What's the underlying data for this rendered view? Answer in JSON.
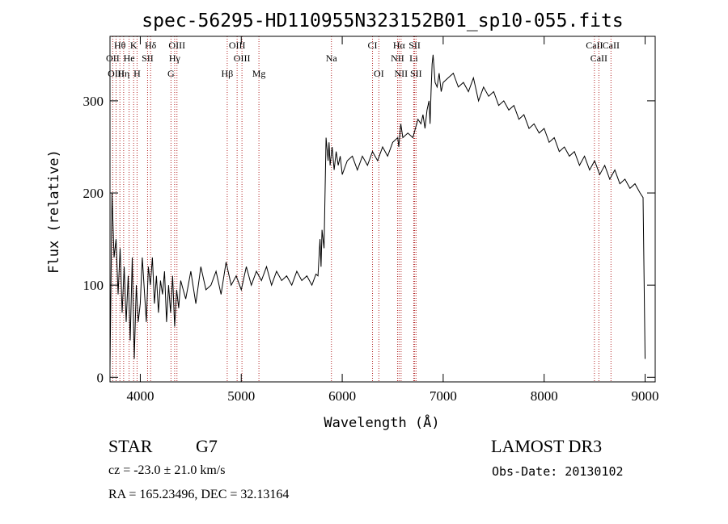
{
  "chart_data": {
    "type": "line",
    "title": "spec-56295-HD110955N323152B01_sp10-055.fits",
    "xlabel": "Wavelength (Å)",
    "ylabel": "Flux (relative)",
    "xlim": [
      3700,
      9100
    ],
    "ylim": [
      -5,
      370
    ],
    "xticks": [
      4000,
      5000,
      6000,
      7000,
      8000,
      9000
    ],
    "yticks": [
      0,
      100,
      200,
      300
    ],
    "grid": false,
    "line_color": "#000000",
    "marker_color": "#b22222",
    "series": [
      {
        "values_x": [
          3700,
          3720,
          3740,
          3760,
          3780,
          3800,
          3820,
          3840,
          3860,
          3880,
          3900,
          3920,
          3940,
          3960,
          3980,
          4000,
          4020,
          4040,
          4060,
          4080,
          4100,
          4120,
          4140,
          4160,
          4180,
          4200,
          4220,
          4240,
          4260,
          4280,
          4300,
          4320,
          4340,
          4360,
          4380,
          4400,
          4450,
          4500,
          4550,
          4600,
          4650,
          4700,
          4750,
          4800,
          4850,
          4900,
          4950,
          5000,
          5050,
          5100,
          5150,
          5200,
          5250,
          5300,
          5350,
          5400,
          5450,
          5500,
          5550,
          5600,
          5650,
          5700,
          5740,
          5760,
          5780,
          5790,
          5800,
          5820,
          5840,
          5860,
          5870,
          5880,
          5900,
          5920,
          5940,
          5960,
          5980,
          6000,
          6050,
          6100,
          6150,
          6200,
          6250,
          6300,
          6350,
          6400,
          6450,
          6500,
          6550,
          6560,
          6580,
          6600,
          6650,
          6700,
          6750,
          6780,
          6800,
          6820,
          6840,
          6860,
          6870,
          6880,
          6890,
          6900,
          6920,
          6940,
          6960,
          6980,
          7000,
          7050,
          7100,
          7150,
          7200,
          7250,
          7300,
          7350,
          7400,
          7450,
          7500,
          7550,
          7600,
          7650,
          7700,
          7750,
          7800,
          7850,
          7900,
          7950,
          8000,
          8050,
          8100,
          8150,
          8200,
          8250,
          8300,
          8350,
          8400,
          8450,
          8500,
          8550,
          8600,
          8650,
          8700,
          8750,
          8800,
          8850,
          8900,
          8950,
          8980,
          9000
        ],
        "values_y": [
          10,
          200,
          130,
          150,
          90,
          140,
          70,
          120,
          60,
          110,
          40,
          130,
          20,
          100,
          60,
          80,
          130,
          95,
          60,
          120,
          100,
          130,
          80,
          110,
          70,
          105,
          90,
          115,
          60,
          100,
          70,
          110,
          55,
          95,
          75,
          105,
          85,
          115,
          80,
          120,
          95,
          100,
          115,
          90,
          125,
          100,
          110,
          95,
          120,
          100,
          115,
          105,
          120,
          100,
          115,
          105,
          110,
          100,
          115,
          105,
          110,
          100,
          112,
          110,
          150,
          120,
          160,
          140,
          260,
          235,
          255,
          230,
          250,
          225,
          245,
          230,
          240,
          220,
          235,
          240,
          225,
          240,
          230,
          245,
          235,
          250,
          240,
          255,
          260,
          250,
          275,
          260,
          265,
          260,
          280,
          275,
          285,
          270,
          290,
          300,
          275,
          310,
          340,
          350,
          320,
          315,
          330,
          310,
          320,
          325,
          330,
          315,
          320,
          310,
          325,
          300,
          315,
          305,
          310,
          295,
          300,
          290,
          295,
          280,
          285,
          270,
          275,
          265,
          270,
          255,
          260,
          245,
          250,
          240,
          245,
          230,
          240,
          225,
          235,
          220,
          230,
          215,
          225,
          210,
          215,
          205,
          210,
          200,
          195,
          20
        ]
      }
    ],
    "lines": [
      {
        "label": "Hθ",
        "x": 3798
      },
      {
        "label": "K",
        "x": 3934
      },
      {
        "label": "Hδ",
        "x": 4102
      },
      {
        "label": "OIII",
        "x": 4363
      },
      {
        "label": "OIII",
        "x": 4959
      },
      {
        "label": "CI",
        "x": 6300
      },
      {
        "label": "Hα",
        "x": 6563
      },
      {
        "label": "SII",
        "x": 6717
      },
      {
        "label": "CaII",
        "x": 8498
      },
      {
        "label": "OII",
        "x": 3727
      },
      {
        "label": "He",
        "x": 3889
      },
      {
        "label": "SII",
        "x": 4072
      },
      {
        "label": "Hγ",
        "x": 4340
      },
      {
        "label": "OIII",
        "x": 5007
      },
      {
        "label": "Na",
        "x": 5893
      },
      {
        "label": "NII",
        "x": 6548
      },
      {
        "label": "Li",
        "x": 6708
      },
      {
        "label": "CaII",
        "x": 8542
      },
      {
        "label": "OIII",
        "x": 3760
      },
      {
        "label": "Hη",
        "x": 3835
      },
      {
        "label": "H",
        "x": 3968
      },
      {
        "label": "G",
        "x": 4304
      },
      {
        "label": "Hβ",
        "x": 4861
      },
      {
        "label": "Mg",
        "x": 5175
      },
      {
        "label": "OI",
        "x": 6363
      },
      {
        "label": "NII",
        "x": 6583
      },
      {
        "label": "SII",
        "x": 6731
      },
      {
        "label": "CaII",
        "x": 8662
      }
    ]
  },
  "info": {
    "object_type": "STAR",
    "subclass": "G7",
    "survey": "LAMOST DR3",
    "redshift": "cz = -23.0 ± 21.0 km/s",
    "obs_date": "Obs-Date: 20130102",
    "coords": "RA = 165.23496, DEC =  32.13164"
  }
}
